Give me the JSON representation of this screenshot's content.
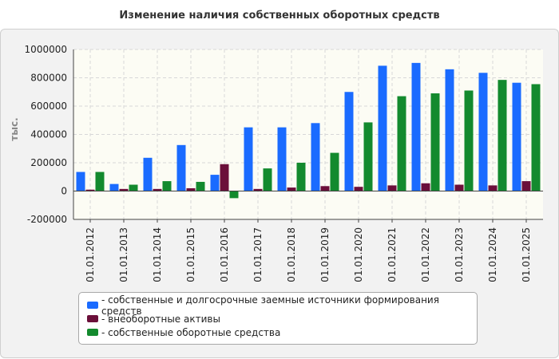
{
  "chart_data": {
    "type": "bar",
    "title": "Изменение наличия собственных оборотных средств",
    "ylabel": "тыс.",
    "xlabel": "",
    "ylim": [
      -200000,
      1000000
    ],
    "yticks": [
      -200000,
      0,
      200000,
      400000,
      600000,
      800000,
      1000000
    ],
    "ytick_labels": [
      "-200000",
      "0",
      "200000",
      "400000",
      "600000",
      "800000",
      "1000000"
    ],
    "grid": true,
    "legend_position": "bottom",
    "categories": [
      "01.01.2012",
      "01.01.2013",
      "01.01.2014",
      "01.01.2015",
      "01.01.2016",
      "01.01.2017",
      "01.01.2018",
      "01.01.2019",
      "01.01.2020",
      "01.01.2021",
      "01.01.2022",
      "01.01.2023",
      "01.01.2024",
      "01.01.2025"
    ],
    "series": [
      {
        "name": "- собственные и долгосрочные заемные источники формирования средств",
        "color": "#1a6bff",
        "values": [
          135000,
          50000,
          235000,
          325000,
          115000,
          450000,
          450000,
          480000,
          700000,
          885000,
          905000,
          860000,
          835000,
          765000
        ]
      },
      {
        "name": "- внеоборотные активы",
        "color": "#6b0f3a",
        "values": [
          10000,
          15000,
          15000,
          20000,
          190000,
          15000,
          25000,
          35000,
          30000,
          40000,
          55000,
          45000,
          40000,
          70000
        ]
      },
      {
        "name": "- собственные оборотные средства",
        "color": "#138a2e",
        "values": [
          135000,
          45000,
          70000,
          65000,
          -50000,
          160000,
          200000,
          270000,
          485000,
          670000,
          690000,
          710000,
          785000,
          755000
        ]
      }
    ]
  }
}
